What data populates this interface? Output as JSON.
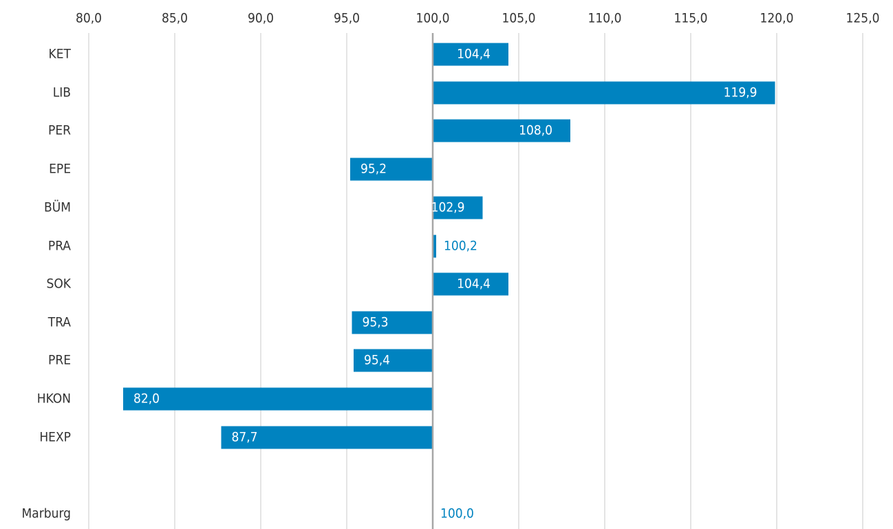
{
  "colors": {
    "bar": "#0083c0",
    "grid": "#c8c8c8",
    "baseline": "#a6a6a6",
    "label_inside": "#ffffff",
    "label_outside": "#0083c0",
    "axis_text": "#333333"
  },
  "chart_data": {
    "type": "bar",
    "orientation": "horizontal",
    "title": "",
    "xlabel": "",
    "ylabel": "",
    "xlim": [
      80,
      125
    ],
    "x_ticks": [
      80,
      85,
      90,
      95,
      100,
      105,
      110,
      115,
      120,
      125
    ],
    "x_tick_labels": [
      "80,0",
      "85,0",
      "90,0",
      "95,0",
      "100,0",
      "105,0",
      "110,0",
      "115,0",
      "120,0",
      "125,0"
    ],
    "x_axis_position": "top",
    "baseline": 100,
    "grid": true,
    "categories": [
      "KET",
      "LIB",
      "PER",
      "EPE",
      "BÜM",
      "PRA",
      "SOK",
      "TRA",
      "PRE",
      "HKON",
      "HEXP",
      "Marburg"
    ],
    "values": [
      104.4,
      119.9,
      108.0,
      95.2,
      102.9,
      100.2,
      104.4,
      95.3,
      95.4,
      82.0,
      87.7,
      100.0
    ],
    "value_labels": [
      "104,4",
      "119,9",
      "108,0",
      "95,2",
      "102,9",
      "100,2",
      "104,4",
      "95,3",
      "95,4",
      "82,0",
      "87,7",
      "100,0"
    ]
  }
}
